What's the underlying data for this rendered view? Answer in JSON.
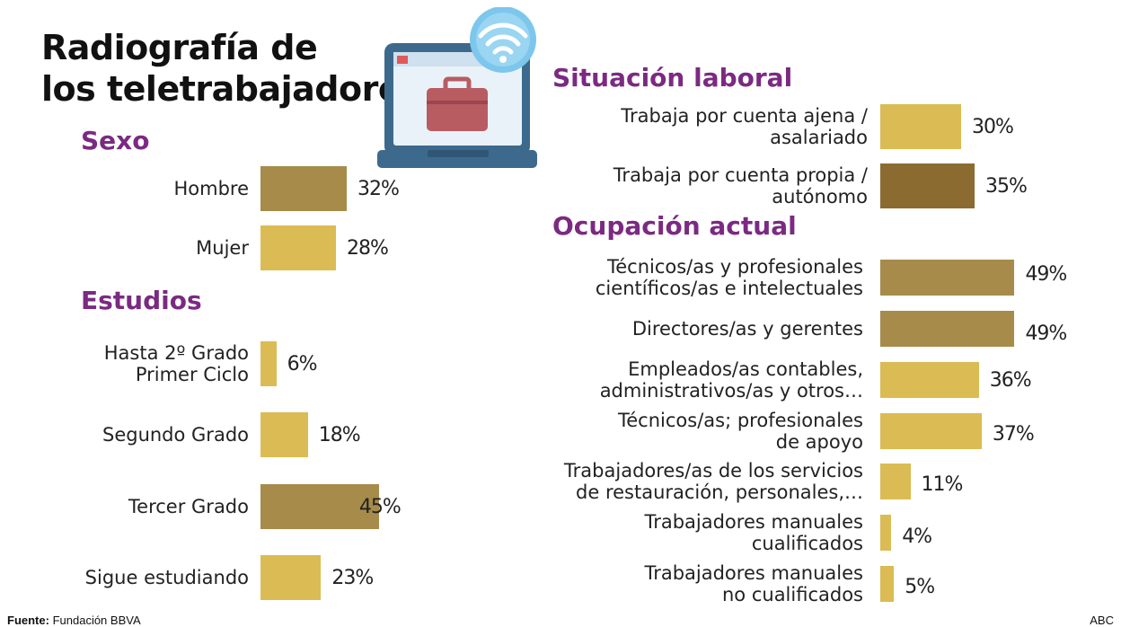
{
  "title_line1": "Radiografía de",
  "title_line2": "los teletrabajadores",
  "colors": {
    "dark_gold": "#a68b4a",
    "light_gold": "#dbbb53",
    "brown": "#8b6b30",
    "section_purple": "#7b2a82"
  },
  "icon": "laptop-wifi-briefcase-icon",
  "footer": {
    "source_label": "Fuente:",
    "source_value": "Fundación BBVA",
    "credit": "ABC"
  },
  "chart_data": [
    {
      "type": "bar",
      "title": "Sexo",
      "categories": [
        "Hombre",
        "Mujer"
      ],
      "values": [
        32,
        28
      ],
      "value_labels": [
        "32%",
        "28%"
      ],
      "bar_colors": [
        "#a68b4a",
        "#dbbb53"
      ]
    },
    {
      "type": "bar",
      "title": "Estudios",
      "categories": [
        "Hasta 2º Grado Primer Ciclo",
        "Segundo Grado",
        "Tercer Grado",
        "Sigue estudiando"
      ],
      "value_labels": [
        "6%",
        "18%",
        "45%",
        "23%"
      ],
      "values": [
        6,
        18,
        45,
        23
      ],
      "bar_colors": [
        "#dbbb53",
        "#dbbb53",
        "#a68b4a",
        "#dbbb53"
      ]
    },
    {
      "type": "bar",
      "title": "Situación laboral",
      "categories": [
        "Trabaja por cuenta ajena / asalariado",
        "Trabaja por cuenta propia / autónomo"
      ],
      "values": [
        30,
        35
      ],
      "value_labels": [
        "30%",
        "35%"
      ],
      "bar_colors": [
        "#dbbb53",
        "#8b6b30"
      ]
    },
    {
      "type": "bar",
      "title": "Ocupación actual",
      "categories": [
        "Técnicos/as y profesionales científicos/as e intelectuales",
        "Directores/as y gerentes",
        "Empleados/as contables, administrativos/as y otros…",
        "Técnicos/as; profesionales de apoyo",
        "Trabajadores/as de los servicios de restauración, personales,…",
        "Trabajadores manuales cualificados",
        "Trabajadores manuales no cualificados"
      ],
      "values": [
        49,
        49,
        36,
        37,
        11,
        4,
        5
      ],
      "value_labels": [
        "49%",
        "49%",
        "36%",
        "37%",
        "11%",
        "4%",
        "5%"
      ],
      "bar_colors": [
        "#a68b4a",
        "#a68b4a",
        "#dbbb53",
        "#dbbb53",
        "#dbbb53",
        "#dbbb53",
        "#dbbb53"
      ]
    }
  ]
}
